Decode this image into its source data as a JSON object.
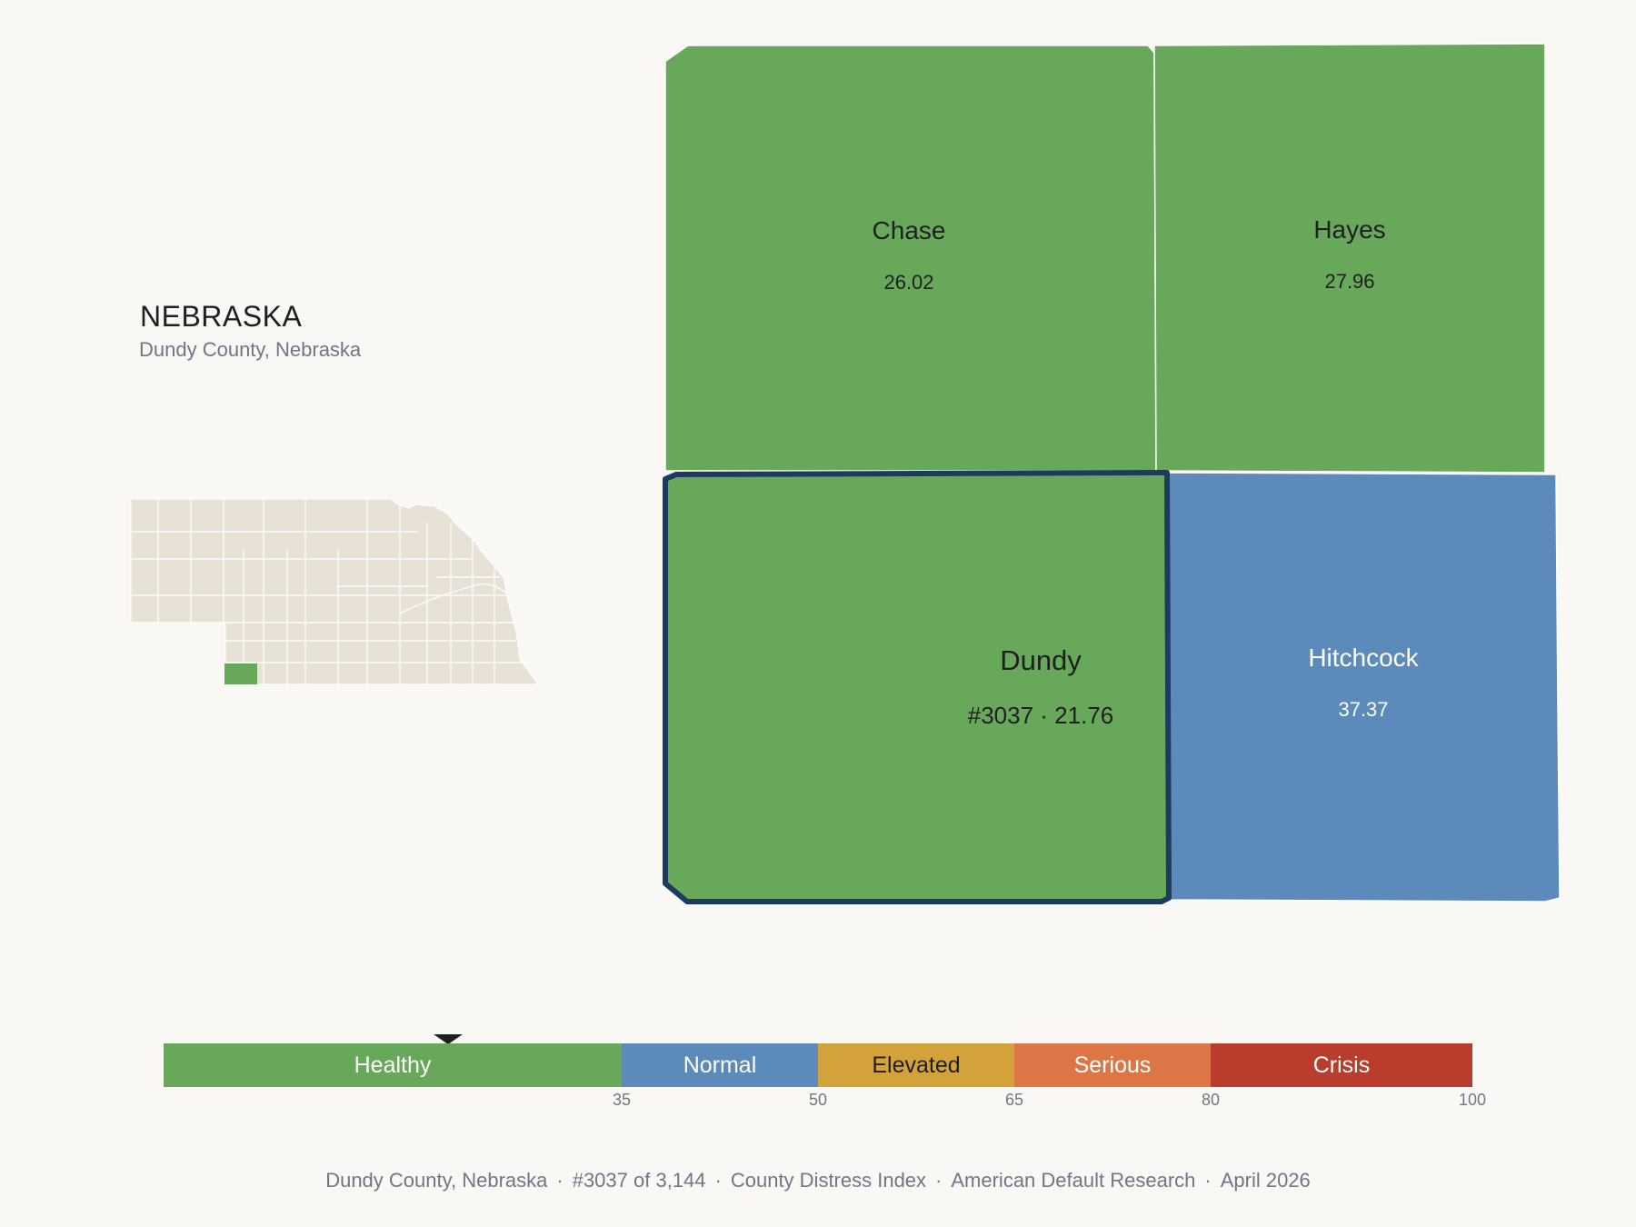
{
  "header": {
    "state_name": "NEBRASKA",
    "subtitle": "Dundy County, Nebraska"
  },
  "colors": {
    "healthy": "#67a85a",
    "normal": "#5c8aba",
    "elevated": "#d4a23b",
    "serious": "#dc7647",
    "crisis": "#b93c2c",
    "highlight_border": "#1e3a5f",
    "inset_fill": "#e8e2d6"
  },
  "counties": [
    {
      "id": "chase",
      "name": "Chase",
      "value": "26.02",
      "category": "healthy"
    },
    {
      "id": "hayes",
      "name": "Hayes",
      "value": "27.96",
      "category": "healthy"
    },
    {
      "id": "dundy",
      "name": "Dundy",
      "value": "#3037 · 21.76",
      "category": "healthy",
      "selected": true
    },
    {
      "id": "hitchcock",
      "name": "Hitchcock",
      "value": "37.37",
      "category": "normal"
    }
  ],
  "legend": {
    "segments": [
      {
        "label": "Healthy",
        "from": 0,
        "to": 35,
        "category": "healthy"
      },
      {
        "label": "Normal",
        "from": 35,
        "to": 50,
        "category": "normal"
      },
      {
        "label": "Elevated",
        "from": 50,
        "to": 65,
        "category": "elevated"
      },
      {
        "label": "Serious",
        "from": 65,
        "to": 80,
        "category": "serious"
      },
      {
        "label": "Crisis",
        "from": 80,
        "to": 100,
        "category": "crisis"
      }
    ],
    "ticks": [
      "35",
      "50",
      "65",
      "80",
      "100"
    ],
    "marker_value": 21.76
  },
  "footer": {
    "county": "Dundy County, Nebraska",
    "rank": "#3037 of 3,144",
    "index": "County Distress Index",
    "source": "American Default Research",
    "date": "April 2026"
  }
}
